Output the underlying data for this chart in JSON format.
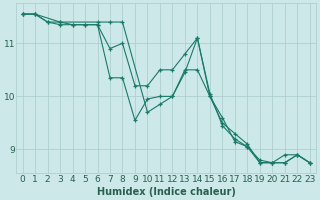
{
  "title": "",
  "xlabel": "Humidex (Indice chaleur)",
  "ylabel": "",
  "bg_color": "#cce8e8",
  "grid_color": "#aacccc",
  "line_color": "#1a7a6a",
  "xlim": [
    -0.5,
    23.5
  ],
  "ylim": [
    8.55,
    11.75
  ],
  "yticks": [
    9,
    10,
    11
  ],
  "xticks": [
    0,
    1,
    2,
    3,
    4,
    5,
    6,
    7,
    8,
    9,
    10,
    11,
    12,
    13,
    14,
    15,
    16,
    17,
    18,
    19,
    20,
    21,
    22,
    23
  ],
  "series": [
    {
      "x": [
        0,
        1,
        3,
        6,
        7,
        8,
        10,
        11,
        12,
        13,
        14,
        15,
        16,
        17,
        18,
        19,
        20,
        21,
        22,
        23
      ],
      "y": [
        11.55,
        11.55,
        11.4,
        11.4,
        11.4,
        11.4,
        9.7,
        9.85,
        10.0,
        10.45,
        11.1,
        10.05,
        9.45,
        9.2,
        9.05,
        8.8,
        8.75,
        8.75,
        8.9,
        8.75
      ]
    },
    {
      "x": [
        0,
        1,
        2,
        3,
        4,
        5,
        6,
        7,
        8,
        9,
        10,
        11,
        12,
        13,
        14,
        15,
        16,
        17,
        18,
        19,
        20,
        21,
        22,
        23
      ],
      "y": [
        11.55,
        11.55,
        11.4,
        11.35,
        11.35,
        11.35,
        11.35,
        10.35,
        10.35,
        9.55,
        9.95,
        10.0,
        10.0,
        10.5,
        10.5,
        10.0,
        9.5,
        9.3,
        9.1,
        8.75,
        8.75,
        8.75,
        8.9,
        8.75
      ]
    },
    {
      "x": [
        0,
        1,
        2,
        3,
        4,
        5,
        6,
        7,
        8,
        9,
        10,
        11,
        12,
        13,
        14,
        15,
        16,
        17,
        18,
        19,
        20,
        21,
        22,
        23
      ],
      "y": [
        11.55,
        11.55,
        11.4,
        11.4,
        11.35,
        11.35,
        11.35,
        10.9,
        11.0,
        10.2,
        10.2,
        10.5,
        10.5,
        10.8,
        11.1,
        10.0,
        9.6,
        9.15,
        9.05,
        8.75,
        8.75,
        8.9,
        8.9,
        8.75
      ]
    }
  ],
  "font_color": "#2a6050",
  "font_size": 6.5,
  "marker": "+",
  "marker_size": 3.5,
  "linewidth": 0.8
}
